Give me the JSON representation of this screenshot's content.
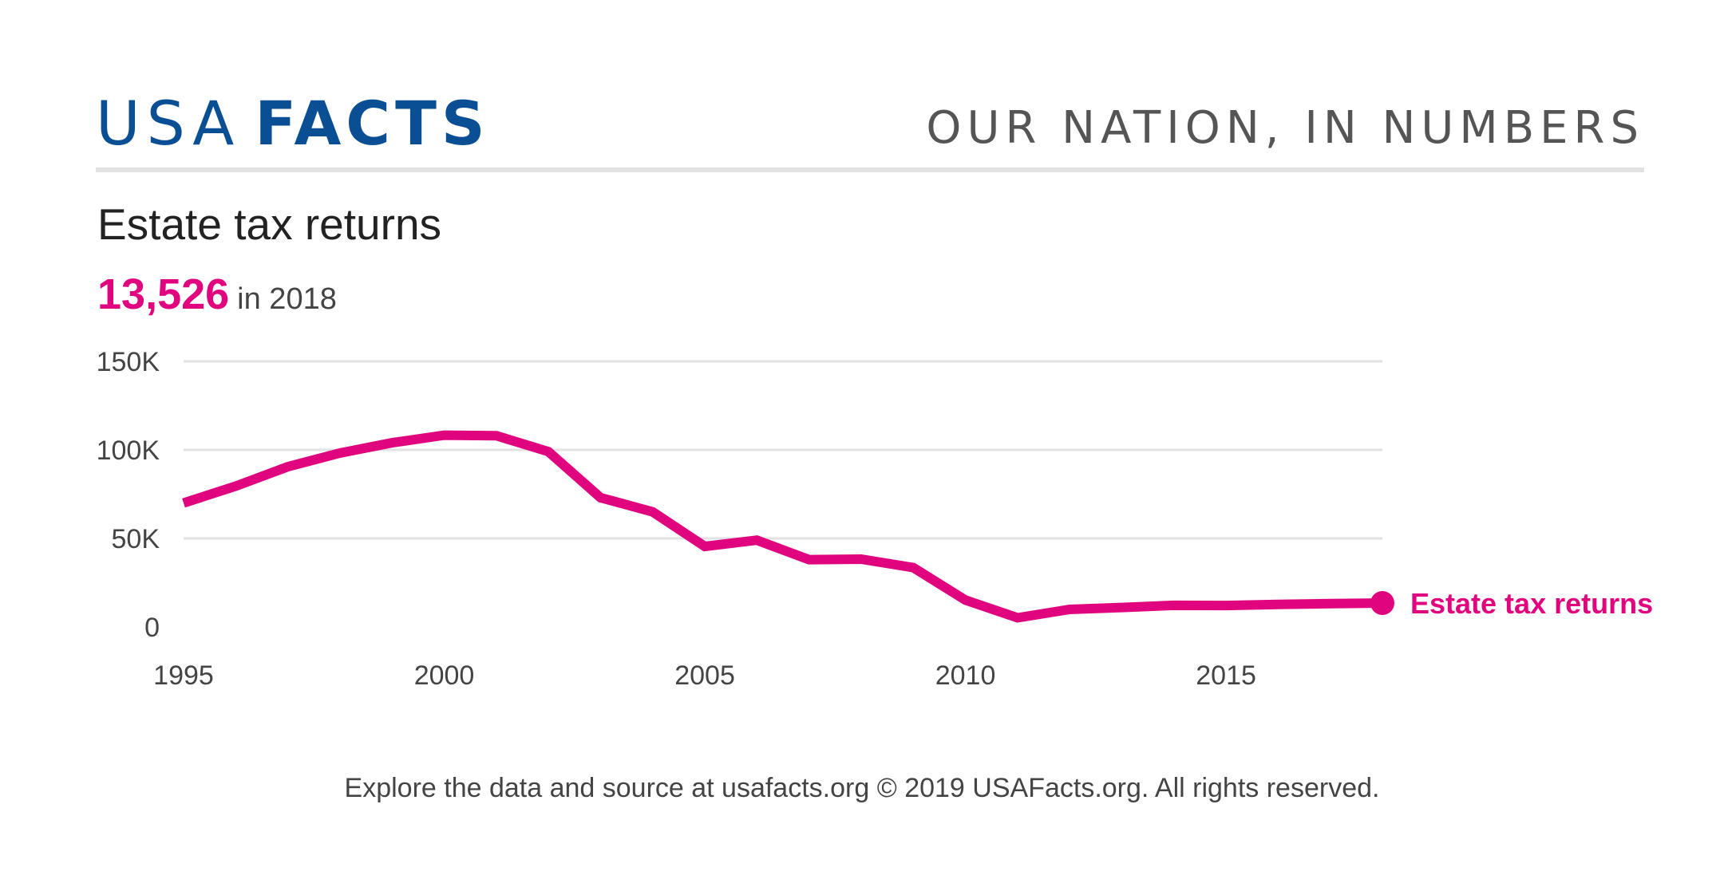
{
  "header": {
    "logo_light": "USA",
    "logo_bold": "FACTS",
    "tagline": "OUR NATION, IN NUMBERS"
  },
  "colors": {
    "brand": "#0a4f94",
    "accent": "#e0047e",
    "grid": "#e2e2e2",
    "text": "#444444"
  },
  "headline": {
    "value": "13,526",
    "suffix": "in 2018"
  },
  "footer": {
    "text": "Explore the data and source at usafacts.org © 2019 USAFacts.org. All rights reserved."
  },
  "chart_data": {
    "type": "line",
    "title": "Estate tax returns",
    "xlabel": "",
    "ylabel": "",
    "xlim": [
      1995,
      2018
    ],
    "ylim": [
      0,
      150000
    ],
    "grid": true,
    "x_ticks": [
      1995,
      2000,
      2005,
      2010,
      2015
    ],
    "x_tick_labels": [
      "1995",
      "2000",
      "2005",
      "2010",
      "2015"
    ],
    "y_ticks": [
      0,
      50000,
      100000,
      150000
    ],
    "y_tick_labels": [
      "0",
      "50K",
      "100K",
      "150K"
    ],
    "series": [
      {
        "name": "Estate tax returns",
        "color": "#e0047e",
        "x": [
          1995,
          1996,
          1997,
          1998,
          1999,
          2000,
          2001,
          2002,
          2003,
          2004,
          2005,
          2006,
          2007,
          2008,
          2009,
          2010,
          2011,
          2012,
          2013,
          2014,
          2015,
          2016,
          2017,
          2018
        ],
        "y": [
          70000,
          79500,
          90500,
          98200,
          104000,
          108300,
          108000,
          99000,
          73000,
          65000,
          45500,
          49000,
          38000,
          38300,
          33500,
          15200,
          5200,
          9900,
          11000,
          12200,
          12100,
          12700,
          13200,
          13526
        ]
      }
    ]
  }
}
